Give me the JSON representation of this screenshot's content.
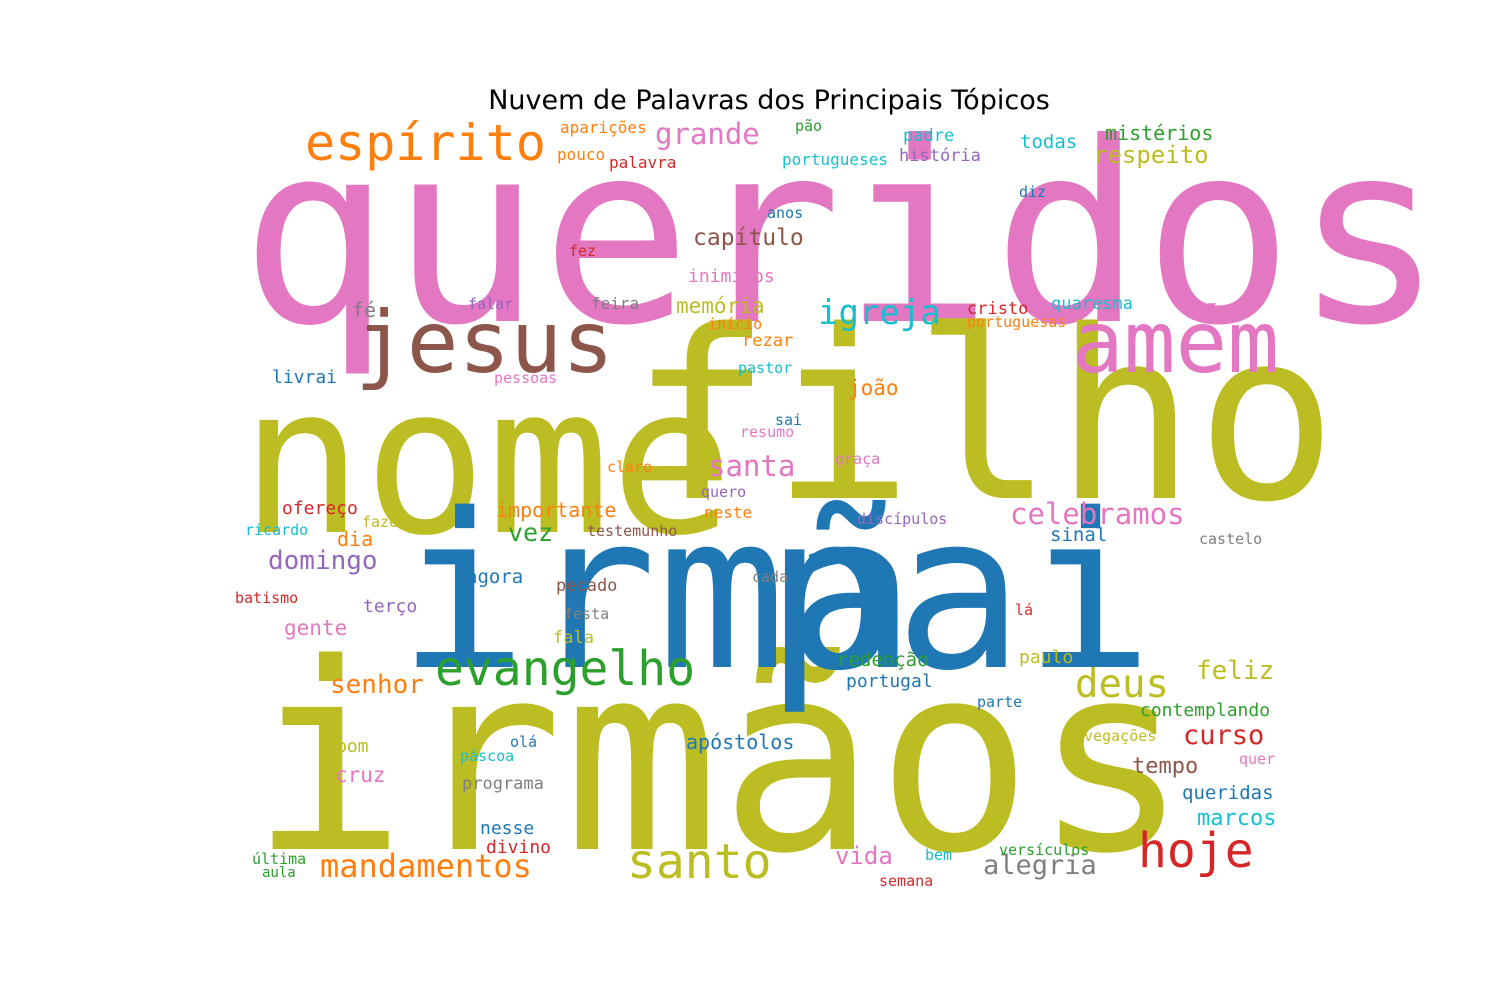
{
  "title": "Nuvem de Palavras dos Principais Tópicos",
  "palette": {
    "blue": "#1f77b4",
    "orange": "#ff7f0e",
    "green": "#2ca02c",
    "red": "#d62728",
    "purple": "#9467bd",
    "brown": "#8c564b",
    "pink": "#e377c2",
    "gray": "#7f7f7f",
    "olive": "#bcbd22",
    "cyan": "#17becf"
  },
  "words": [
    {
      "text": "queridos",
      "color": "pink"
    },
    {
      "text": "filho",
      "color": "olive"
    },
    {
      "text": "nome",
      "color": "olive"
    },
    {
      "text": "irmãos",
      "color": "olive"
    },
    {
      "text": "irmã",
      "color": "blue"
    },
    {
      "text": "pai",
      "color": "blue"
    },
    {
      "text": "jesus",
      "color": "brown"
    },
    {
      "text": "amém",
      "color": "pink"
    },
    {
      "text": "espírito",
      "color": "orange"
    },
    {
      "text": "evangelho",
      "color": "green"
    },
    {
      "text": "santo",
      "color": "olive"
    },
    {
      "text": "hoje",
      "color": "red"
    },
    {
      "text": "deus",
      "color": "olive"
    },
    {
      "text": "mandamentos",
      "color": "orange"
    },
    {
      "text": "celebramos",
      "color": "pink"
    },
    {
      "text": "igreja",
      "color": "cyan"
    },
    {
      "text": "grande",
      "color": "pink"
    },
    {
      "text": "santa",
      "color": "pink"
    },
    {
      "text": "senhor",
      "color": "orange"
    },
    {
      "text": "alegria",
      "color": "gray"
    },
    {
      "text": "domingo",
      "color": "purple"
    },
    {
      "text": "curso",
      "color": "red"
    },
    {
      "text": "respeito",
      "color": "olive"
    },
    {
      "text": "capítulo",
      "color": "brown"
    },
    {
      "text": "feliz",
      "color": "olive"
    },
    {
      "text": "vida",
      "color": "pink"
    },
    {
      "text": "memória",
      "color": "olive"
    },
    {
      "text": "vez",
      "color": "green"
    },
    {
      "text": "tempo",
      "color": "brown"
    },
    {
      "text": "marcos",
      "color": "cyan"
    },
    {
      "text": "mistérios",
      "color": "green"
    },
    {
      "text": "joão",
      "color": "orange"
    },
    {
      "text": "importante",
      "color": "orange"
    },
    {
      "text": "cruz",
      "color": "pink"
    },
    {
      "text": "apóstolos",
      "color": "blue"
    },
    {
      "text": "gente",
      "color": "pink"
    },
    {
      "text": "agora",
      "color": "blue"
    },
    {
      "text": "redenção",
      "color": "green"
    },
    {
      "text": "queridas",
      "color": "blue"
    },
    {
      "text": "contemplando",
      "color": "green"
    },
    {
      "text": "fé",
      "color": "gray"
    },
    {
      "text": "ofereço",
      "color": "red"
    },
    {
      "text": "dia",
      "color": "orange"
    },
    {
      "text": "sinal",
      "color": "blue"
    },
    {
      "text": "todas",
      "color": "cyan"
    },
    {
      "text": "divino",
      "color": "red"
    },
    {
      "text": "nesse",
      "color": "blue"
    },
    {
      "text": "inimigos",
      "color": "pink"
    },
    {
      "text": "portugal",
      "color": "blue"
    },
    {
      "text": "paulo",
      "color": "olive"
    },
    {
      "text": "livrai",
      "color": "blue"
    },
    {
      "text": "bom",
      "color": "olive"
    },
    {
      "text": "pecado",
      "color": "brown"
    },
    {
      "text": "terço",
      "color": "purple"
    },
    {
      "text": "rezar",
      "color": "orange"
    },
    {
      "text": "quaresma",
      "color": "cyan"
    },
    {
      "text": "cristo",
      "color": "red"
    },
    {
      "text": "padre",
      "color": "cyan"
    },
    {
      "text": "história",
      "color": "purple"
    },
    {
      "text": "portugueses",
      "color": "cyan"
    },
    {
      "text": "palavra",
      "color": "red"
    },
    {
      "text": "aparições",
      "color": "orange"
    },
    {
      "text": "pouco",
      "color": "orange"
    },
    {
      "text": "pão",
      "color": "green"
    },
    {
      "text": "programa",
      "color": "gray"
    },
    {
      "text": "fala",
      "color": "olive"
    },
    {
      "text": "neste",
      "color": "orange"
    },
    {
      "text": "discípulos",
      "color": "purple"
    },
    {
      "text": "navegações",
      "color": "olive"
    },
    {
      "text": "versículos",
      "color": "green"
    },
    {
      "text": "feira",
      "color": "gray"
    },
    {
      "text": "falar",
      "color": "purple"
    },
    {
      "text": "anos",
      "color": "blue"
    },
    {
      "text": "fez",
      "color": "red"
    },
    {
      "text": "diz",
      "color": "blue"
    },
    {
      "text": "início",
      "color": "orange"
    },
    {
      "text": "portuguesas",
      "color": "orange"
    },
    {
      "text": "pessoas",
      "color": "pink"
    },
    {
      "text": "pastor",
      "color": "cyan"
    },
    {
      "text": "sai",
      "color": "blue"
    },
    {
      "text": "resumo",
      "color": "pink"
    },
    {
      "text": "graça",
      "color": "pink"
    },
    {
      "text": "claro",
      "color": "orange"
    },
    {
      "text": "quero",
      "color": "purple"
    },
    {
      "text": "testemunho",
      "color": "brown"
    },
    {
      "text": "fazer",
      "color": "olive"
    },
    {
      "text": "ricardo",
      "color": "cyan"
    },
    {
      "text": "castelo",
      "color": "gray"
    },
    {
      "text": "cada",
      "color": "gray"
    },
    {
      "text": "batismo",
      "color": "red"
    },
    {
      "text": "festa",
      "color": "gray"
    },
    {
      "text": "lá",
      "color": "red"
    },
    {
      "text": "parte",
      "color": "blue"
    },
    {
      "text": "olá",
      "color": "blue"
    },
    {
      "text": "páscoa",
      "color": "cyan"
    },
    {
      "text": "quer",
      "color": "pink"
    },
    {
      "text": "última",
      "color": "green"
    },
    {
      "text": "aula",
      "color": "green"
    },
    {
      "text": "bem",
      "color": "cyan"
    },
    {
      "text": "semana",
      "color": "red"
    }
  ]
}
